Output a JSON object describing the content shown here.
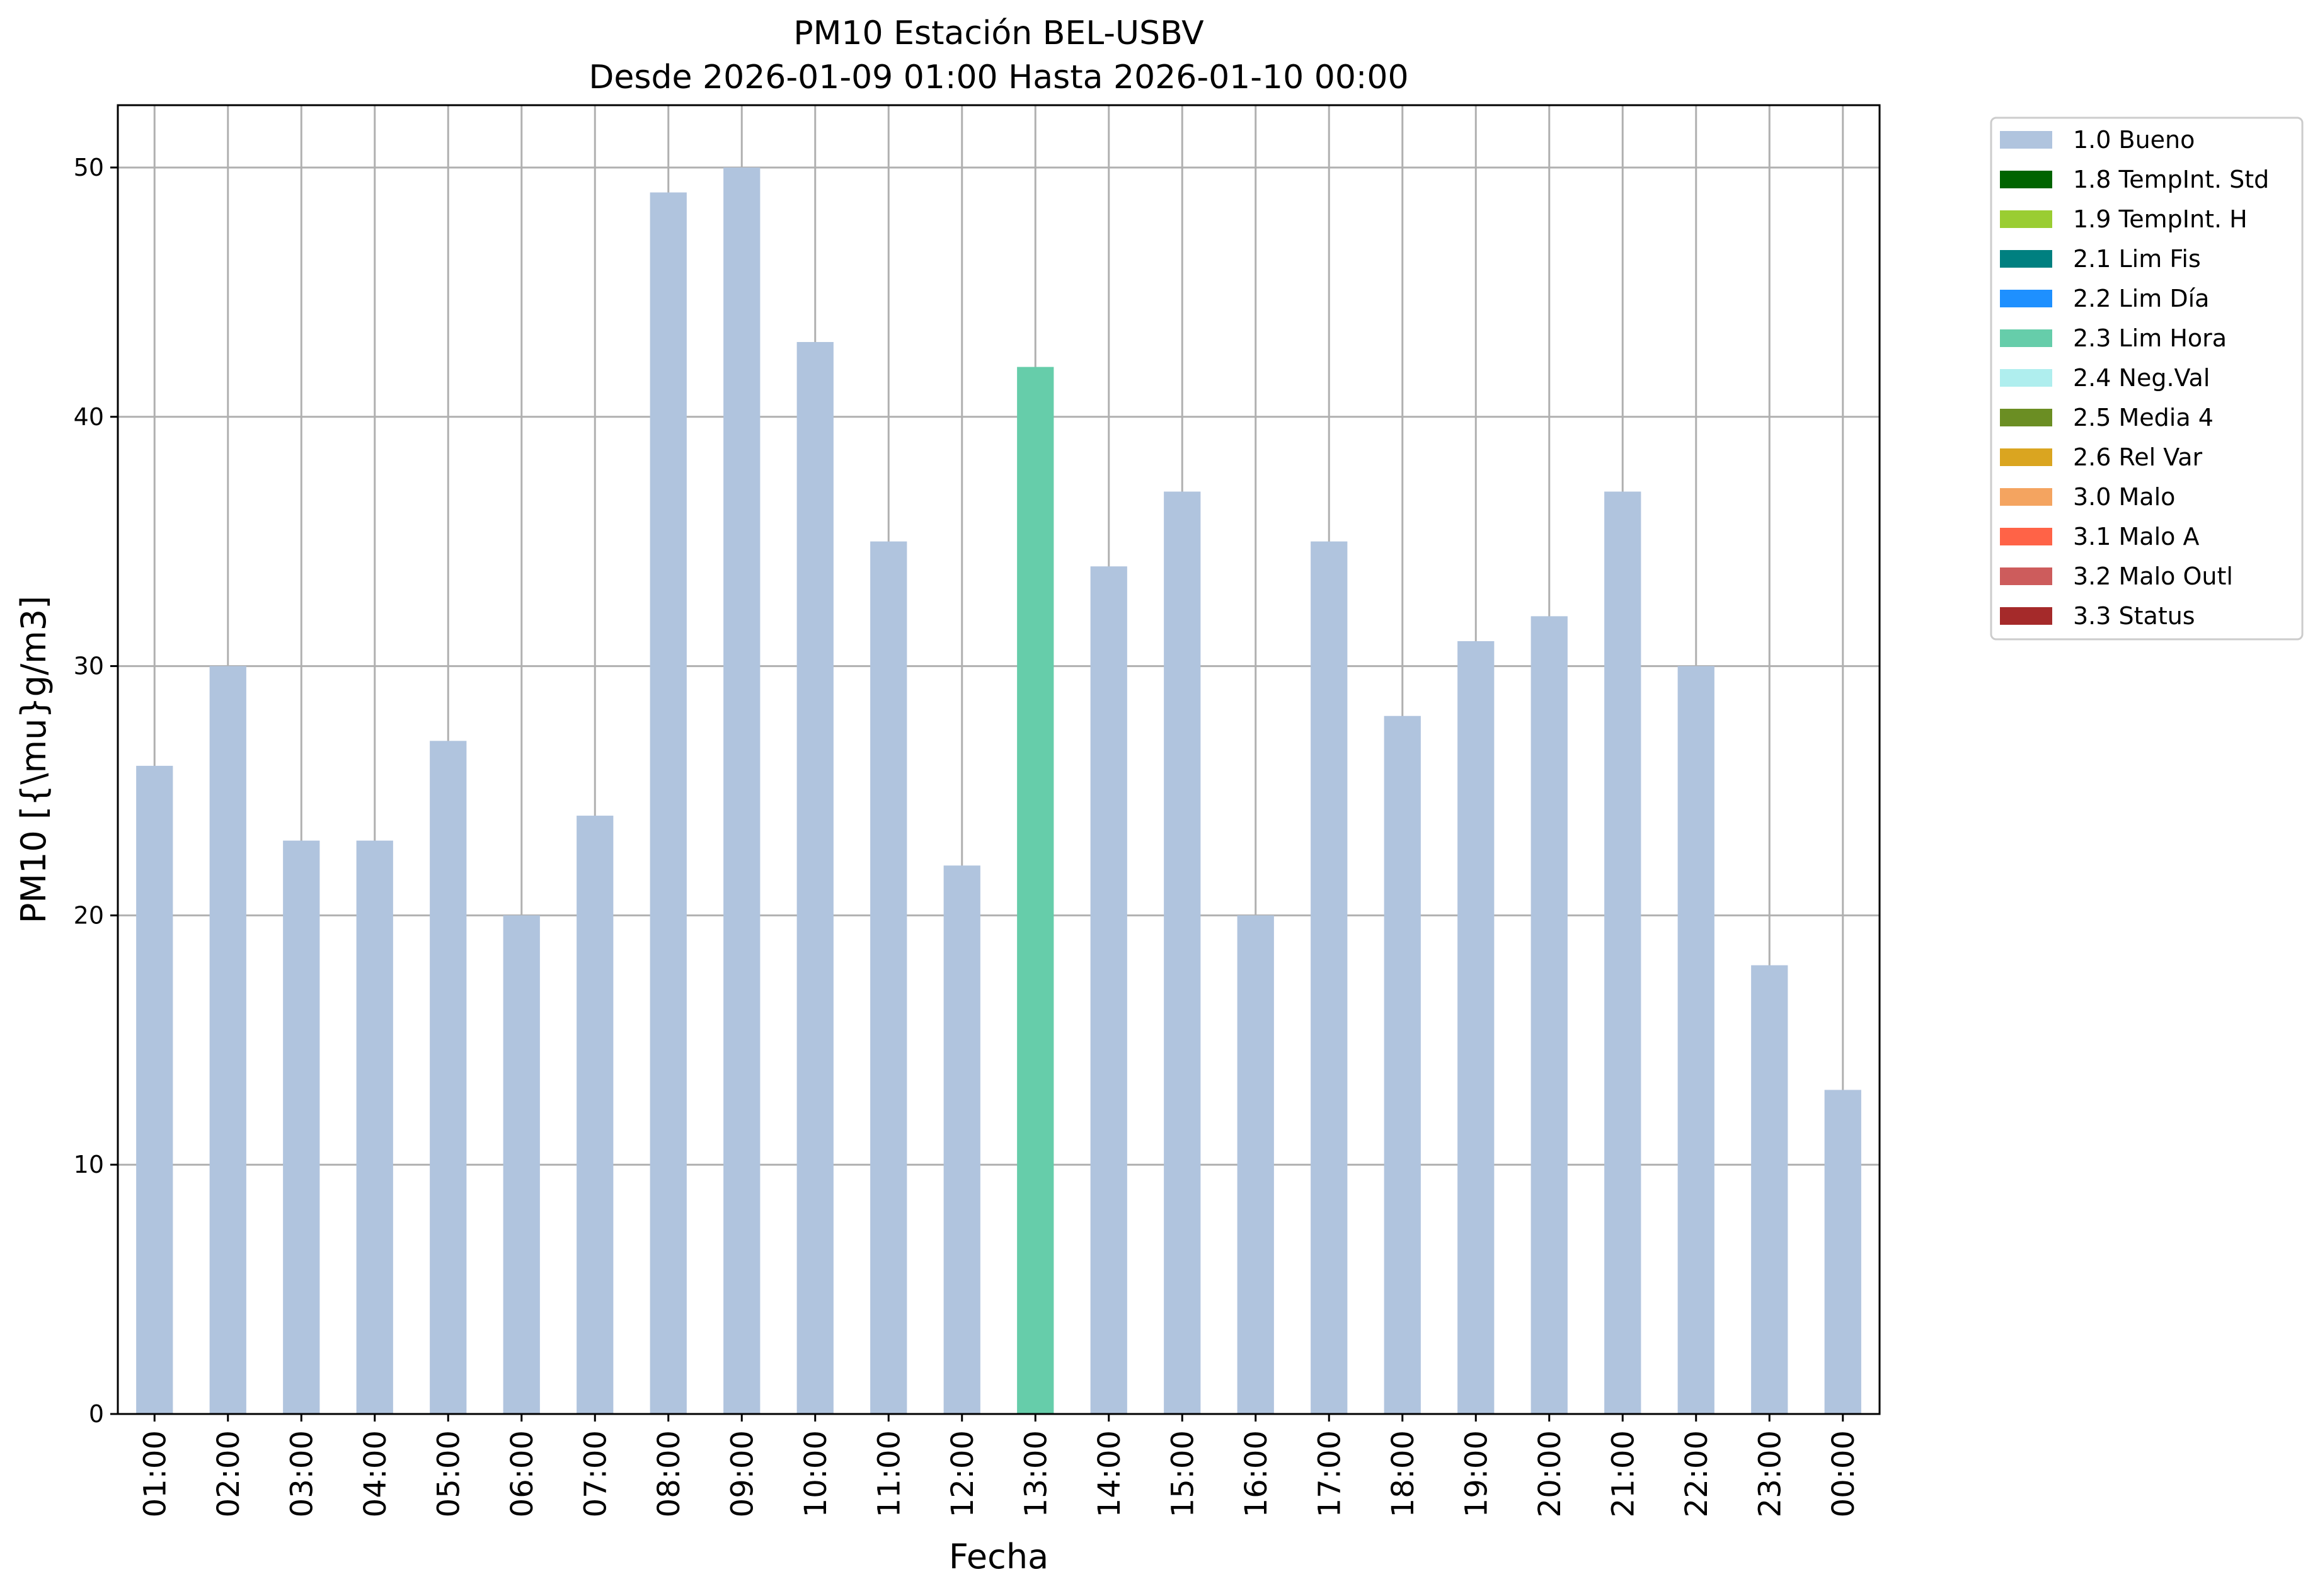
{
  "chart_data": {
    "type": "bar",
    "title": "PM10 Estación BEL-USBV",
    "subtitle": "Desde 2026-01-09 01:00 Hasta 2026-01-10 00:00",
    "xlabel": "Fecha",
    "ylabel": "PM10 [{\\mu}g/m3]",
    "ylim": [
      0,
      52.5
    ],
    "yticks": [
      "0",
      "10",
      "20",
      "30",
      "40",
      "50"
    ],
    "grid": true,
    "legend_position": "outside-top-right",
    "categories": [
      "01:00",
      "02:00",
      "03:00",
      "04:00",
      "05:00",
      "06:00",
      "07:00",
      "08:00",
      "09:00",
      "10:00",
      "11:00",
      "12:00",
      "13:00",
      "14:00",
      "15:00",
      "16:00",
      "17:00",
      "18:00",
      "19:00",
      "20:00",
      "21:00",
      "22:00",
      "23:00",
      "00:00"
    ],
    "values": [
      26,
      30,
      23,
      23,
      27,
      20,
      24,
      49,
      50,
      43,
      35,
      22,
      42,
      34,
      37,
      20,
      35,
      28,
      31,
      32,
      37,
      30,
      18,
      13
    ],
    "flags": [
      "1.0",
      "1.0",
      "1.0",
      "1.0",
      "1.0",
      "1.0",
      "1.0",
      "1.0",
      "1.0",
      "1.0",
      "1.0",
      "1.0",
      "2.3",
      "1.0",
      "1.0",
      "1.0",
      "1.0",
      "1.0",
      "1.0",
      "1.0",
      "1.0",
      "1.0",
      "1.0",
      "1.0"
    ],
    "legend": [
      {
        "code": "1.0",
        "label": "1.0 Bueno",
        "color": "#b0c4de"
      },
      {
        "code": "1.8",
        "label": "1.8 TempInt. Std",
        "color": "#006400"
      },
      {
        "code": "1.9",
        "label": "1.9 TempInt. H",
        "color": "#9acd32"
      },
      {
        "code": "2.1",
        "label": "2.1 Lim Fis",
        "color": "#008080"
      },
      {
        "code": "2.2",
        "label": "2.2 Lim Día",
        "color": "#1e90ff"
      },
      {
        "code": "2.3",
        "label": "2.3 Lim Hora",
        "color": "#66cdaa"
      },
      {
        "code": "2.4",
        "label": "2.4 Neg.Val",
        "color": "#afeeee"
      },
      {
        "code": "2.5",
        "label": "2.5 Media 4",
        "color": "#6b8e23"
      },
      {
        "code": "2.6",
        "label": "2.6 Rel Var",
        "color": "#daa520"
      },
      {
        "code": "3.0",
        "label": "3.0 Malo",
        "color": "#f4a460"
      },
      {
        "code": "3.1",
        "label": "3.1 Malo A",
        "color": "#ff6347"
      },
      {
        "code": "3.2",
        "label": "3.2 Malo Outl",
        "color": "#cd5c5c"
      },
      {
        "code": "3.3",
        "label": "3.3 Status",
        "color": "#a52a2a"
      }
    ]
  }
}
